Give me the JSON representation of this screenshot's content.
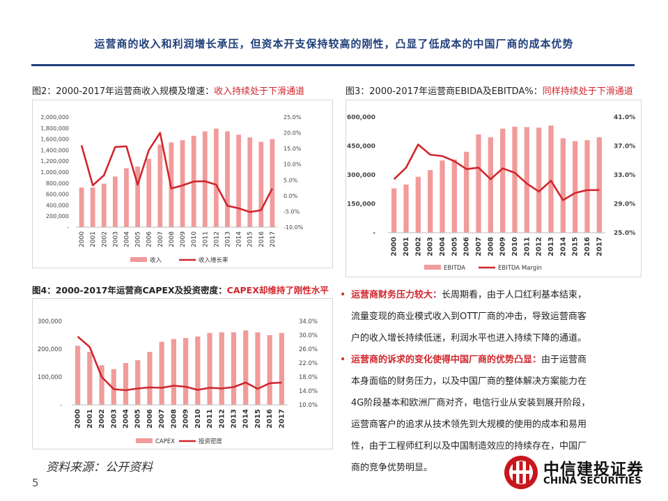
{
  "headline": "运营商的收入和利润增长承压，但资本开支保持较高的刚性，凸显了低成本的中国厂商的成本优势",
  "colors": {
    "accent_blue": "#1f3f7a",
    "bar": "#f19b9b",
    "line": "#d0262d",
    "highlight": "#d0262d"
  },
  "fig2": {
    "title_prefix": "图2：2000-2017年运营商收入规模及增速：",
    "title_highlight": "收入持续处于下滑通道"
  },
  "fig3": {
    "title_prefix": "图3：2000-2017年运营商EBIDA及EBITDA%：",
    "title_highlight": "同样持续处于下滑通道"
  },
  "fig4": {
    "title_prefix": "图4：2000-2017年运营商CAPEX及投资密度：",
    "title_highlight": "CAPEX却维持了刚性水平"
  },
  "chart_data": [
    {
      "type": "bar+line",
      "id": "fig2",
      "categories": [
        "2000",
        "2001",
        "2002",
        "2003",
        "2004",
        "2005",
        "2006",
        "2007",
        "2008",
        "2009",
        "2010",
        "2011",
        "2012",
        "2013",
        "2014",
        "2015",
        "2016",
        "2017"
      ],
      "series": [
        {
          "name": "收入",
          "type": "bar",
          "axis": "left",
          "values": [
            720000,
            720000,
            790000,
            920000,
            1070000,
            1100000,
            1240000,
            1500000,
            1540000,
            1580000,
            1660000,
            1740000,
            1790000,
            1740000,
            1680000,
            1630000,
            1550000,
            1600000
          ]
        },
        {
          "name": "收入增长率",
          "type": "line",
          "axis": "right",
          "values": [
            16.0,
            3.3,
            6.5,
            15.5,
            15.7,
            3.5,
            14.5,
            20.0,
            2.3,
            3.3,
            4.5,
            4.6,
            3.5,
            -3.2,
            -4.0,
            -5.2,
            -4.6,
            2.3
          ]
        }
      ],
      "left_axis": {
        "min": 0,
        "max": 2000000,
        "ticks": [
          "2,000,000",
          "1,800,000",
          "1,600,000",
          "1,400,000",
          "1,200,000",
          "1,000,000",
          "800,000",
          "600,000",
          "400,000",
          "200,000",
          "-"
        ]
      },
      "right_axis": {
        "min": -10,
        "max": 25,
        "ticks": [
          "25.0%",
          "20.0%",
          "15.0%",
          "10.0%",
          "5.0%",
          "0.0%",
          "-5.0%",
          "-10.0%"
        ]
      },
      "legend_position": "bottom"
    },
    {
      "type": "bar+line",
      "id": "fig3",
      "categories": [
        "2000",
        "2001",
        "2002",
        "2003",
        "2004",
        "2005",
        "2006",
        "2007",
        "2008",
        "2009",
        "2010",
        "2011",
        "2012",
        "2013",
        "2014",
        "2015",
        "2016",
        "2017"
      ],
      "series": [
        {
          "name": "EBITDA",
          "type": "bar",
          "axis": "left",
          "values": [
            230000,
            250000,
            290000,
            325000,
            375000,
            380000,
            420000,
            510000,
            495000,
            540000,
            550000,
            548000,
            545000,
            556000,
            490000,
            475000,
            480000,
            495000
          ]
        },
        {
          "name": "EBITDA Margin",
          "type": "line",
          "axis": "right",
          "values": [
            32.4,
            34.0,
            37.2,
            35.8,
            35.6,
            34.9,
            33.8,
            34.0,
            32.4,
            33.9,
            33.3,
            31.8,
            30.7,
            32.2,
            29.5,
            30.5,
            30.9,
            30.9
          ]
        }
      ],
      "left_axis": {
        "min": 0,
        "max": 600000,
        "ticks": [
          "600,000",
          "450,000",
          "300,000",
          "150,000",
          "-"
        ]
      },
      "right_axis": {
        "min": 25,
        "max": 41,
        "ticks": [
          "41.0%",
          "37.0%",
          "33.0%",
          "29.0%",
          "25.0%"
        ]
      },
      "legend_position": "bottom"
    },
    {
      "type": "bar+line",
      "id": "fig4",
      "categories": [
        "2000",
        "2001",
        "2002",
        "2003",
        "2004",
        "2005",
        "2006",
        "2007",
        "2008",
        "2009",
        "2010",
        "2011",
        "2012",
        "2013",
        "2014",
        "2015",
        "2016",
        "2017"
      ],
      "series": [
        {
          "name": "CAPEX",
          "type": "bar",
          "axis": "left",
          "values": [
            212000,
            190000,
            142000,
            128000,
            150000,
            160000,
            190000,
            226000,
            236000,
            240000,
            245000,
            258000,
            260000,
            260000,
            267000,
            260000,
            250000,
            258000
          ]
        },
        {
          "name": "投资密度",
          "type": "line",
          "axis": "right",
          "values": [
            29.6,
            26.6,
            18.0,
            14.5,
            14.2,
            14.7,
            15.0,
            14.9,
            15.5,
            15.2,
            14.3,
            14.9,
            14.7,
            15.1,
            16.4,
            14.6,
            16.2,
            16.4
          ]
        }
      ],
      "left_axis": {
        "min": 0,
        "max": 300000,
        "ticks": [
          "300,000",
          "200,000",
          "100,000",
          "-"
        ]
      },
      "right_axis": {
        "min": 10,
        "max": 34,
        "ticks": [
          "34.0%",
          "30.0%",
          "26.0%",
          "22.0%",
          "18.0%",
          "14.0%",
          "10.0%"
        ]
      },
      "legend_position": "bottom"
    }
  ],
  "bullets": [
    {
      "lead": "运营商财务压力较大：",
      "lines": [
        "长周期看，由于人口红利基本结束，",
        "流量变现的商业模式收入到OTT厂商的冲击，导致运营商客",
        "户的收入增长持续低迷，利润水平也进入持续下降的通道。"
      ]
    },
    {
      "lead": "运营商的诉求的变化使得中国厂商的优势凸显：",
      "lines": [
        "由于运营商",
        "本身面临的财务压力，以及中国厂商的整体解决方案能力在",
        "4G阶段基本和欧洲厂商对齐，电信行业从安装到展开阶段，",
        "运营商客户的追求从技术领先到大规模的使用的成本和易用",
        "性，由于工程师红利以及中国制造效应的持续存在，中国厂",
        "商的竞争优势明显。"
      ]
    }
  ],
  "bullet_symbol": "•",
  "source": "资料来源：公开资料",
  "page_number": "5",
  "logo": {
    "cn": "中信建投证券",
    "en": "CHINA SECURITIES",
    "icon": "citic-logo-icon"
  }
}
